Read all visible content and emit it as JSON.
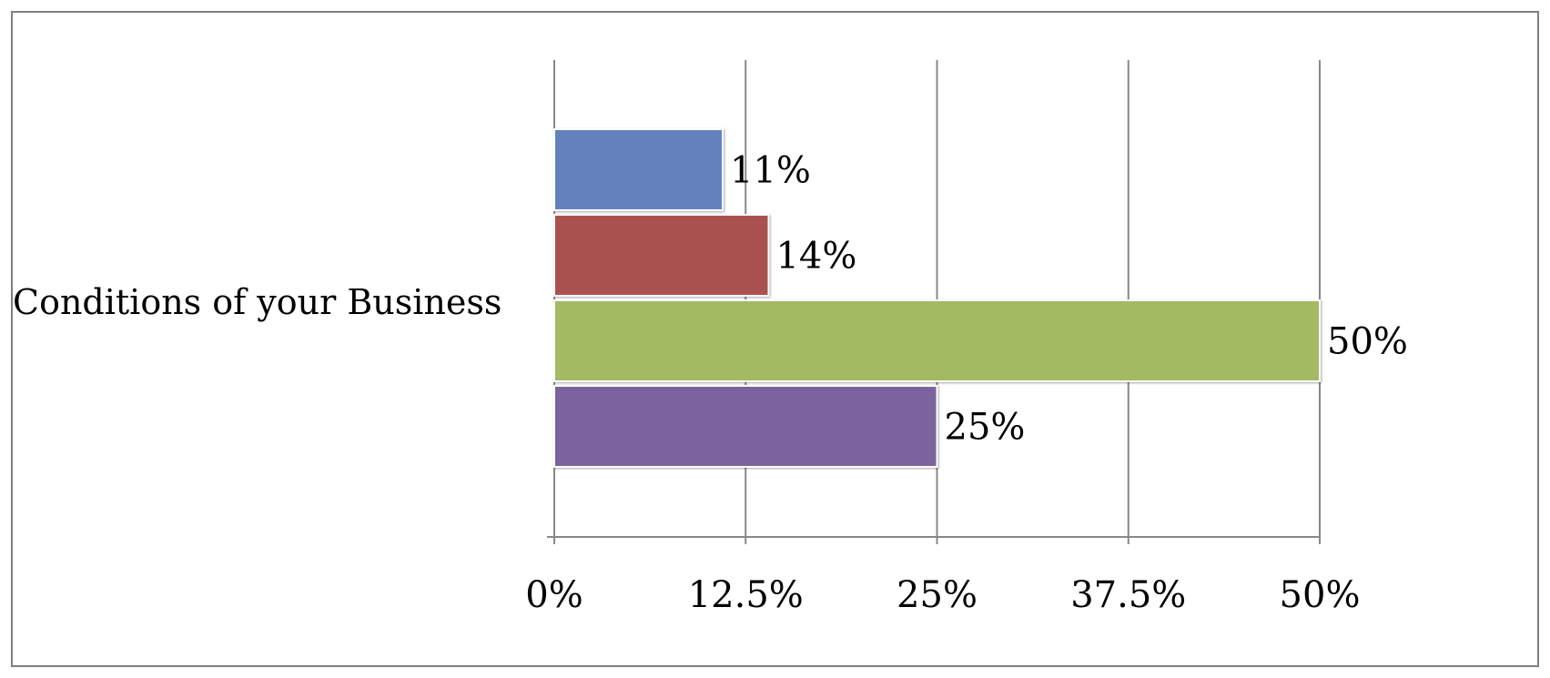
{
  "chart_data": {
    "type": "bar",
    "orientation": "horizontal",
    "categories": [
      "Conditions of your Business"
    ],
    "series": [
      {
        "values": [
          11
        ],
        "color": "#6382bd"
      },
      {
        "values": [
          14
        ],
        "color": "#a9514f"
      },
      {
        "values": [
          50
        ],
        "color": "#a3b962"
      },
      {
        "values": [
          25
        ],
        "color": "#7b649d"
      }
    ],
    "data_labels": [
      "11%",
      "14%",
      "50%",
      "25%"
    ],
    "xlim": [
      0,
      50
    ],
    "x_ticks": [
      0,
      12.5,
      25,
      37.5,
      50
    ],
    "x_tick_labels": [
      "0%",
      "12.5%",
      "25%",
      "37.5%",
      "50%"
    ],
    "grid": true,
    "legend": "none"
  }
}
